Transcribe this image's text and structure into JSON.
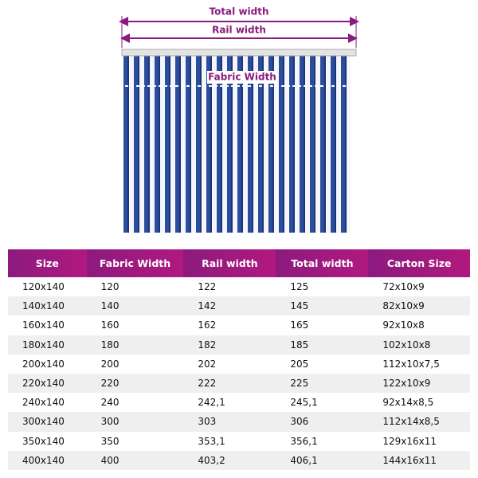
{
  "diagram": {
    "total_width": "Total width",
    "rail_width": "Rail width",
    "fabric_width": "Fabric Width"
  },
  "table": {
    "columns": [
      "Size",
      "Fabric Width",
      "Rail width",
      "Total width",
      "Carton Size"
    ],
    "rows": [
      [
        "120x140",
        "120",
        "122",
        "125",
        "72x10x9"
      ],
      [
        "140x140",
        "140",
        "142",
        "145",
        "82x10x9"
      ],
      [
        "160x140",
        "160",
        "162",
        "165",
        "92x10x8"
      ],
      [
        "180x140",
        "180",
        "182",
        "185",
        "102x10x8"
      ],
      [
        "200x140",
        "200",
        "202",
        "205",
        "112x10x7,5"
      ],
      [
        "220x140",
        "220",
        "222",
        "225",
        "122x10x9"
      ],
      [
        "240x140",
        "240",
        "242,1",
        "245,1",
        "92x14x8,5"
      ],
      [
        "300x140",
        "300",
        "303",
        "306",
        "112x14x8,5"
      ],
      [
        "350x140",
        "350",
        "353,1",
        "356,1",
        "129x16x11"
      ],
      [
        "400x140",
        "400",
        "403,2",
        "406,1",
        "144x16x11"
      ]
    ]
  }
}
